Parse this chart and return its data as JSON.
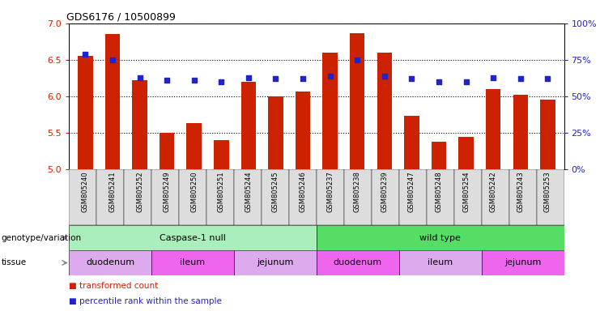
{
  "title": "GDS6176 / 10500899",
  "samples": [
    "GSM805240",
    "GSM805241",
    "GSM805252",
    "GSM805249",
    "GSM805250",
    "GSM805251",
    "GSM805244",
    "GSM805245",
    "GSM805246",
    "GSM805237",
    "GSM805238",
    "GSM805239",
    "GSM805247",
    "GSM805248",
    "GSM805254",
    "GSM805242",
    "GSM805243",
    "GSM805253"
  ],
  "bar_heights": [
    6.55,
    6.85,
    6.22,
    5.5,
    5.63,
    5.4,
    6.2,
    6.0,
    6.07,
    6.6,
    6.87,
    6.6,
    5.73,
    5.38,
    5.45,
    6.1,
    6.02,
    5.96
  ],
  "dot_values": [
    79,
    75,
    63,
    61,
    61,
    60,
    63,
    62,
    62,
    64,
    75,
    64,
    62,
    60,
    60,
    63,
    62,
    62
  ],
  "ylim_left": [
    5.0,
    7.0
  ],
  "ylim_right": [
    0,
    100
  ],
  "yticks_left": [
    5.0,
    5.5,
    6.0,
    6.5,
    7.0
  ],
  "yticks_right": [
    0,
    25,
    50,
    75,
    100
  ],
  "ytick_labels_right": [
    "0%",
    "25%",
    "50%",
    "75%",
    "100%"
  ],
  "bar_color": "#cc2200",
  "dot_color": "#2222cc",
  "background_color": "#ffffff",
  "genotype_groups": [
    {
      "label": "Caspase-1 null",
      "start": 0,
      "end": 9,
      "color": "#aaeebb"
    },
    {
      "label": "wild type",
      "start": 9,
      "end": 18,
      "color": "#55dd66"
    }
  ],
  "tissue_groups": [
    {
      "label": "duodenum",
      "start": 0,
      "end": 3,
      "color": "#ddaaee"
    },
    {
      "label": "ileum",
      "start": 3,
      "end": 6,
      "color": "#ee66ee"
    },
    {
      "label": "jejunum",
      "start": 6,
      "end": 9,
      "color": "#ddaaee"
    },
    {
      "label": "duodenum",
      "start": 9,
      "end": 12,
      "color": "#ee66ee"
    },
    {
      "label": "ileum",
      "start": 12,
      "end": 15,
      "color": "#ddaaee"
    },
    {
      "label": "jejunum",
      "start": 15,
      "end": 18,
      "color": "#ee66ee"
    }
  ],
  "legend_items": [
    {
      "label": "transformed count",
      "color": "#cc2200"
    },
    {
      "label": "percentile rank within the sample",
      "color": "#2222cc"
    }
  ],
  "ylabel_left_color": "#cc2200",
  "ylabel_right_color": "#2222cc",
  "genotype_label": "genotype/variation",
  "tissue_label": "tissue",
  "arrow_color": "#888888"
}
